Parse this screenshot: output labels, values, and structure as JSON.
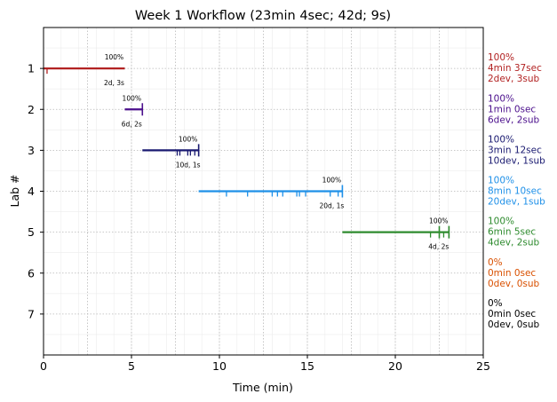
{
  "chart_data": {
    "type": "line",
    "title": "Week 1 Workflow (23min 4sec; 42d; 9s)",
    "xlabel": "Time (min)",
    "ylabel": "Lab #",
    "xlim": [
      0,
      25
    ],
    "ylim": [
      0,
      8
    ],
    "y_inverted": true,
    "xticks": [
      "0",
      "5",
      "10",
      "15",
      "20",
      "25"
    ],
    "yticks": [
      "1",
      "2",
      "3",
      "4",
      "5",
      "6",
      "7"
    ],
    "grid": true,
    "series": [
      {
        "lab": 1,
        "color": "#b22222",
        "start": 0.0,
        "end": 4.62,
        "events": [
          0.2
        ],
        "submit": null,
        "pct_label": "100%",
        "count_label": "2d, 3s",
        "summary": [
          "100%",
          "4min 37sec",
          "2dev, 3sub"
        ]
      },
      {
        "lab": 2,
        "color": "#4b0f8c",
        "start": 4.62,
        "end": 5.62,
        "events": [],
        "submit": 5.62,
        "pct_label": "100%",
        "count_label": "6d, 2s",
        "summary": [
          "100%",
          "1min 0sec",
          "6dev, 2sub"
        ]
      },
      {
        "lab": 3,
        "color": "#191970",
        "start": 5.62,
        "end": 8.82,
        "events": [
          7.6,
          7.75,
          8.2,
          8.35,
          8.6
        ],
        "submit": 8.82,
        "pct_label": "100%",
        "count_label": "10d, 1s",
        "summary": [
          "100%",
          "3min 12sec",
          "10dev, 1sub"
        ]
      },
      {
        "lab": 4,
        "color": "#1e90e8",
        "start": 8.82,
        "end": 16.99,
        "events": [
          10.4,
          11.6,
          13.0,
          13.3,
          13.6,
          14.4,
          14.55,
          14.9,
          16.3,
          16.75
        ],
        "submit": 16.99,
        "pct_label": "100%",
        "count_label": "20d, 1s",
        "summary": [
          "100%",
          "8min 10sec",
          "20dev, 1sub"
        ]
      },
      {
        "lab": 5,
        "color": "#2e8b2e",
        "start": 16.99,
        "end": 23.07,
        "events": [
          22.0,
          22.75
        ],
        "submit": 22.5,
        "submit2": 23.05,
        "pct_label": "100%",
        "count_label": "4d, 2s",
        "summary": [
          "100%",
          "6min 5sec",
          "4dev, 2sub"
        ]
      },
      {
        "lab": 6,
        "color": "#d95000",
        "start": null,
        "end": null,
        "events": [],
        "submit": null,
        "pct_label": "",
        "count_label": "",
        "summary": [
          "0%",
          "0min 0sec",
          "0dev, 0sub"
        ]
      },
      {
        "lab": 7,
        "color": "#000000",
        "start": null,
        "end": null,
        "events": [],
        "submit": null,
        "pct_label": "",
        "count_label": "",
        "summary": [
          "0%",
          "0min 0sec",
          "0dev, 0sub"
        ]
      }
    ]
  }
}
